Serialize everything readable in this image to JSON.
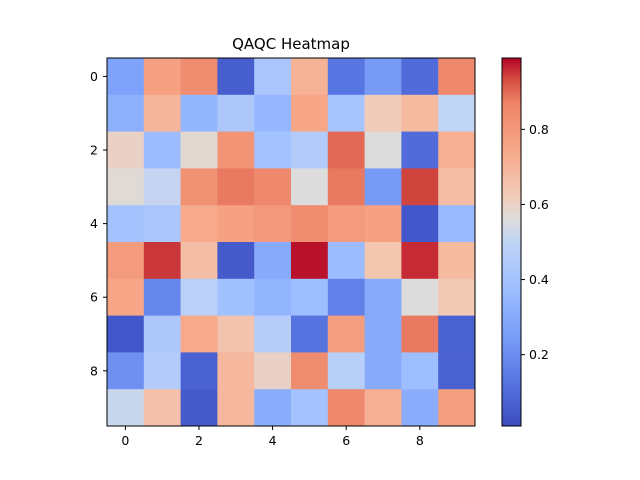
{
  "chart_data": {
    "type": "heatmap",
    "title": "QAQC Heatmap",
    "xlabel": "",
    "ylabel": "",
    "colormap": "coolwarm",
    "x_ticks": [
      0,
      2,
      4,
      6,
      8
    ],
    "y_ticks": [
      0,
      2,
      4,
      6,
      8
    ],
    "colorbar": {
      "range": [
        0.01,
        0.99
      ],
      "ticks": [
        0.2,
        0.4,
        0.6,
        0.8
      ],
      "tick_labels": [
        "0.2",
        "0.4",
        "0.6",
        "0.8"
      ]
    },
    "values": [
      [
        0.27,
        0.77,
        0.84,
        0.06,
        0.42,
        0.71,
        0.13,
        0.24,
        0.1,
        0.85
      ],
      [
        0.32,
        0.7,
        0.34,
        0.43,
        0.35,
        0.75,
        0.41,
        0.62,
        0.68,
        0.5
      ],
      [
        0.6,
        0.37,
        0.58,
        0.81,
        0.4,
        0.45,
        0.9,
        0.56,
        0.1,
        0.72
      ],
      [
        0.57,
        0.51,
        0.82,
        0.88,
        0.85,
        0.56,
        0.88,
        0.24,
        0.94,
        0.67
      ],
      [
        0.4,
        0.42,
        0.74,
        0.77,
        0.8,
        0.84,
        0.79,
        0.77,
        0.04,
        0.36
      ],
      [
        0.79,
        0.95,
        0.67,
        0.05,
        0.3,
        0.98,
        0.37,
        0.64,
        0.96,
        0.68
      ],
      [
        0.75,
        0.18,
        0.48,
        0.39,
        0.34,
        0.38,
        0.16,
        0.3,
        0.56,
        0.63
      ],
      [
        0.04,
        0.43,
        0.74,
        0.65,
        0.46,
        0.12,
        0.78,
        0.3,
        0.88,
        0.07
      ],
      [
        0.21,
        0.45,
        0.07,
        0.69,
        0.6,
        0.84,
        0.47,
        0.3,
        0.38,
        0.07
      ],
      [
        0.52,
        0.66,
        0.05,
        0.69,
        0.31,
        0.4,
        0.85,
        0.72,
        0.31,
        0.78
      ]
    ]
  }
}
